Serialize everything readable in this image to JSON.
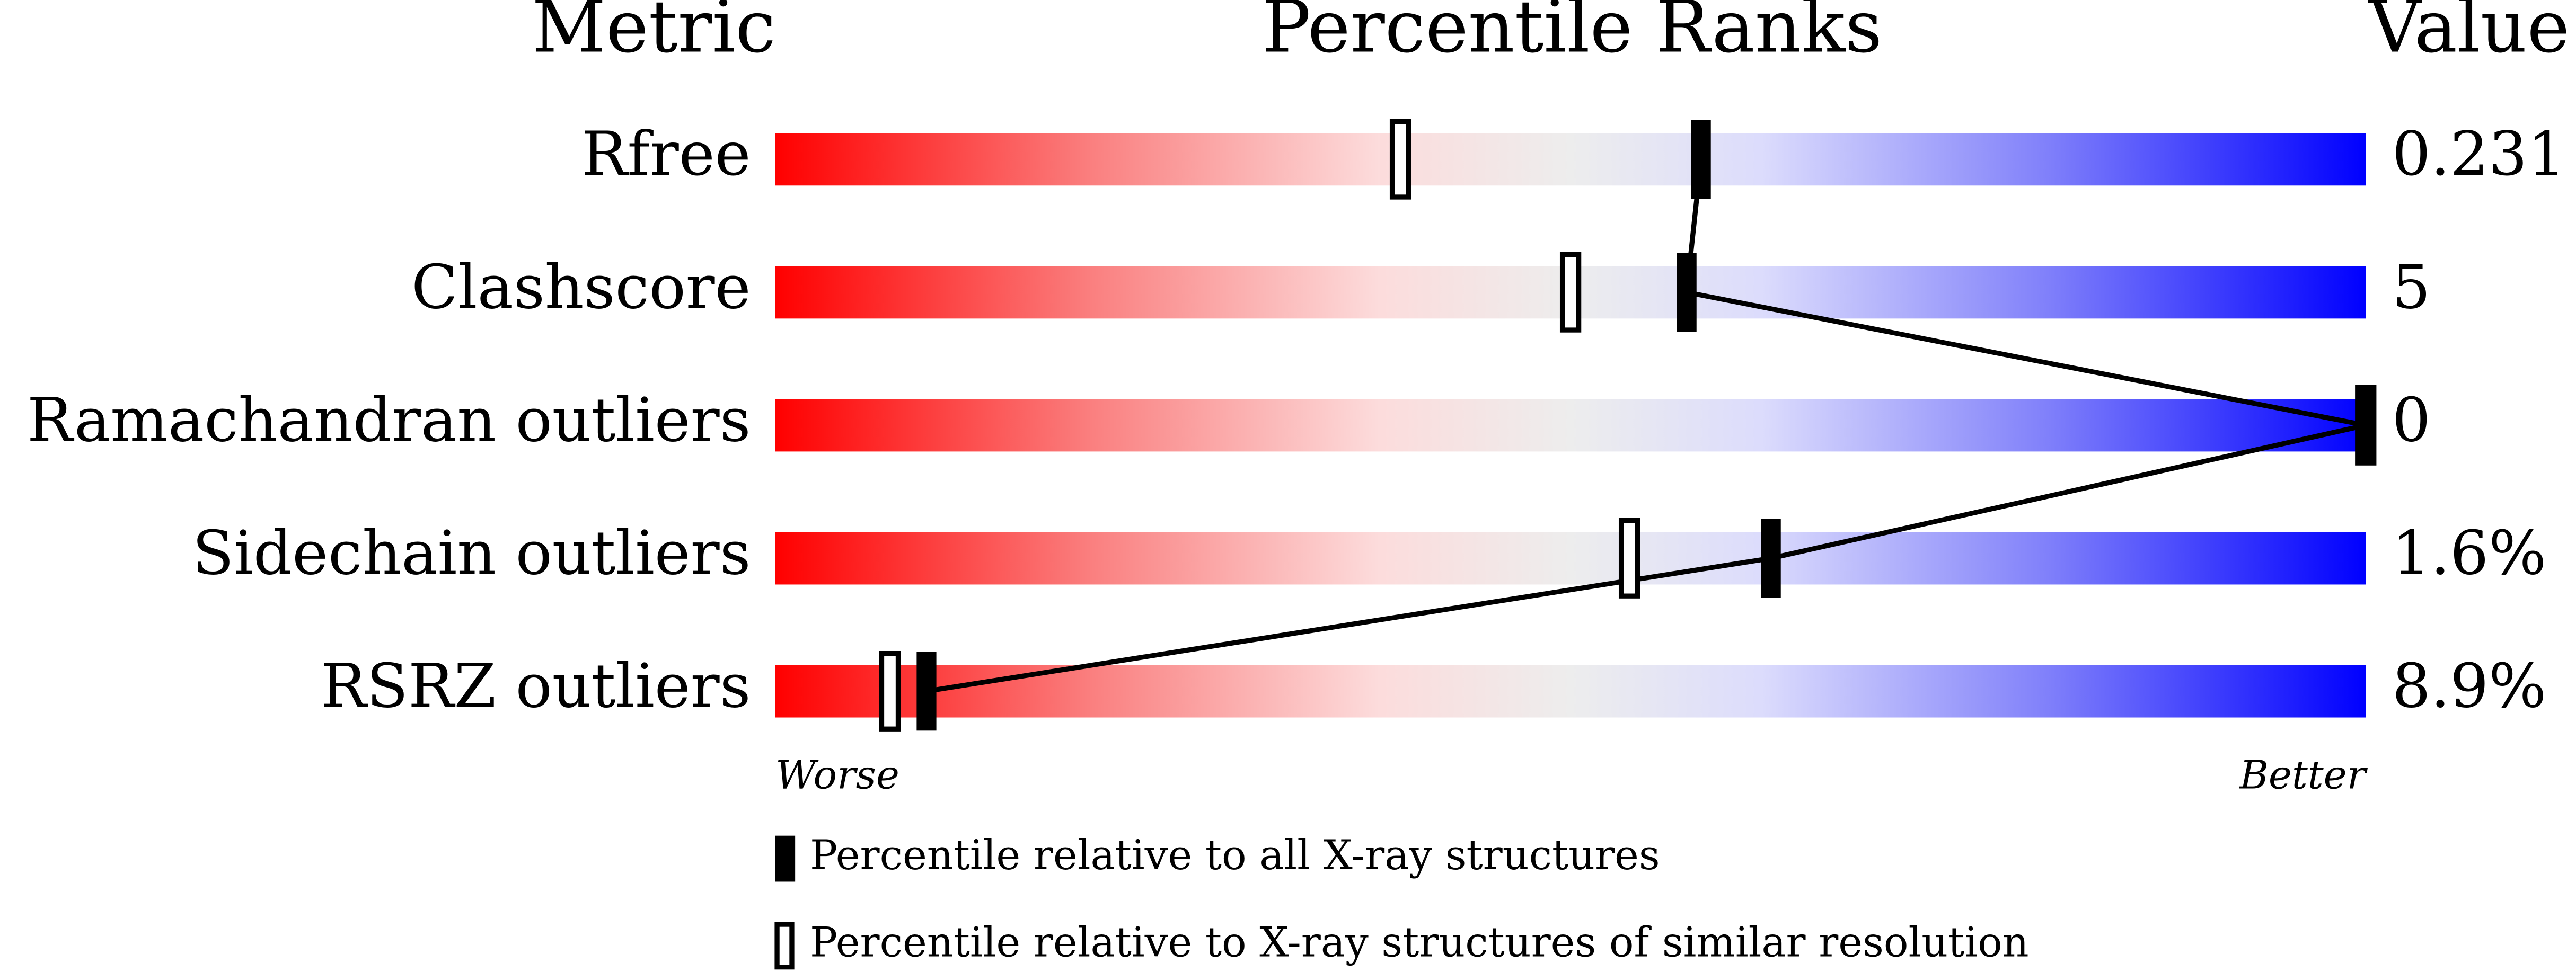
{
  "chart_data": {
    "type": "percentile",
    "title": "Percentile Ranks",
    "metric_header": "Metric",
    "value_header": "Value",
    "categories": [
      "Rfree",
      "Clashscore",
      "Ramachandran outliers",
      "Sidechain outliers",
      "RSRZ outliers"
    ],
    "metric_values": [
      "0.231",
      "5",
      "0",
      "1.6%",
      "8.9%"
    ],
    "series": [
      {
        "name": "Percentile relative to all X-ray structures",
        "color": "#000000",
        "style": "filled",
        "values": [
          58.2,
          57.3,
          100,
          62.6,
          9.5
        ]
      },
      {
        "name": "Percentile relative to X-ray structures of similar resolution",
        "color": "#000000",
        "style": "open",
        "values": [
          39.3,
          50.0,
          100,
          53.7,
          7.2
        ]
      }
    ],
    "xlim": [
      0,
      100
    ],
    "x_min_label": "Worse",
    "x_max_label": "Better",
    "connect_series": 0
  }
}
